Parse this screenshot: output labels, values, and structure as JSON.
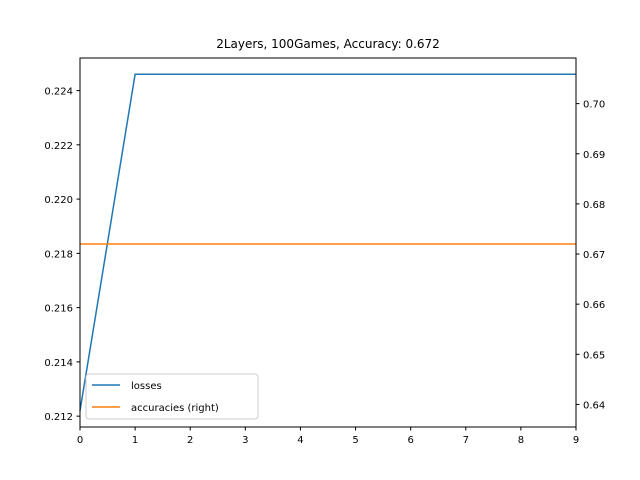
{
  "chart_data": {
    "type": "line",
    "title": "2Layers, 100Games, Accuracy: 0.672",
    "x": [
      0,
      1,
      2,
      3,
      4,
      5,
      6,
      7,
      8,
      9
    ],
    "xlim": [
      0,
      9
    ],
    "ylim_left": [
      0.2116,
      0.2252
    ],
    "ylim_right": [
      0.6355,
      0.7091
    ],
    "x_ticks": [
      "0",
      "1",
      "2",
      "3",
      "4",
      "5",
      "6",
      "7",
      "8",
      "9"
    ],
    "y_left_ticks": [
      "0.212",
      "0.214",
      "0.216",
      "0.218",
      "0.220",
      "0.222",
      "0.224"
    ],
    "y_right_ticks": [
      "0.64",
      "0.65",
      "0.66",
      "0.67",
      "0.68",
      "0.69",
      "0.70"
    ],
    "grid": false,
    "legend_position": "lower-left",
    "series": [
      {
        "name": "losses",
        "axis": "left",
        "color": "#1f77b4",
        "values": [
          0.2122,
          0.2246,
          0.2246,
          0.2246,
          0.2246,
          0.2246,
          0.2246,
          0.2246,
          0.2246,
          0.2246
        ]
      },
      {
        "name": "accuracies (right)",
        "axis": "right",
        "color": "#ff7f0e",
        "values": [
          0.672,
          0.672,
          0.672,
          0.672,
          0.672,
          0.672,
          0.672,
          0.672,
          0.672,
          0.672
        ]
      }
    ]
  }
}
